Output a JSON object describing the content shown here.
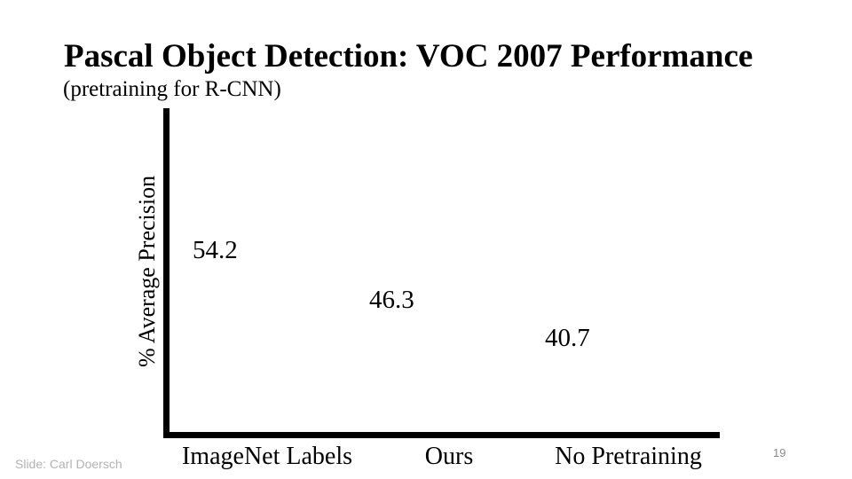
{
  "slide": {
    "title": "Pascal Object Detection: VOC 2007 Performance",
    "subtitle": "(pretraining for R-CNN)"
  },
  "chart_data": {
    "type": "bar",
    "title": "Pascal Object Detection: VOC 2007 Performance",
    "subtitle": "(pretraining for R-CNN)",
    "categories": [
      "ImageNet Labels",
      "Ours",
      "No Pretraining"
    ],
    "values": [
      54.2,
      46.3,
      40.7
    ],
    "xlabel": "",
    "ylabel": "% Average Precision",
    "ylim": [
      0,
      60
    ],
    "grid": false,
    "legend": false,
    "notes": "Values rendered as floating text labels only; no bars are drawn on this slide build."
  },
  "footer": {
    "credit": "Slide: Carl Doersch",
    "page_number": "19"
  },
  "colors": {
    "background": "#ffffff",
    "text": "#000000",
    "axis": "#000000",
    "credit_gray": "#b3b3b3",
    "page_number_gray": "#8a8a8a"
  }
}
